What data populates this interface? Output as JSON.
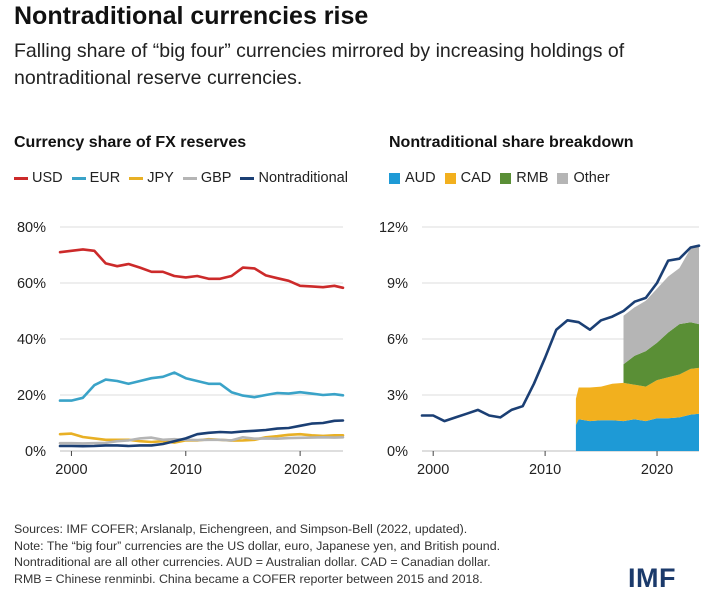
{
  "title": "Nontraditional currencies rise",
  "subtitle": "Falling share of “big four” currencies mirrored by increasing holdings of nontraditional reserve currencies.",
  "logo": "IMF",
  "notes": [
    "Sources: IMF COFER; Arslanalp, Eichengreen, and Simpson-Bell (2022, updated).",
    "Note: The “big four” currencies are the US dollar, euro, Japanese yen, and British pound.",
    "Nontraditional are all other currencies. AUD = Australian dollar. CAD = Canadian dollar.",
    "RMB = Chinese renminbi. China became a COFER reporter between 2015 and 2018."
  ],
  "chart_data": [
    {
      "type": "line",
      "title": "Currency share of FX reserves",
      "xlim": [
        1999,
        2023.75
      ],
      "ylim": [
        0,
        80
      ],
      "xticks": [
        "2000",
        "2010",
        "2020"
      ],
      "yticks": [
        "0%",
        "20%",
        "40%",
        "60%",
        "80%"
      ],
      "grid": "horizontal",
      "legend_position": "top",
      "series": [
        {
          "name": "USD",
          "color": "#cc2a2a",
          "x": [
            1999,
            2000,
            2001,
            2002,
            2003,
            2004,
            2005,
            2006,
            2007,
            2008,
            2009,
            2010,
            2011,
            2012,
            2013,
            2014,
            2015,
            2016,
            2017,
            2018,
            2019,
            2020,
            2021,
            2022,
            2023,
            2023.75
          ],
          "y": [
            71,
            71.5,
            72,
            71.5,
            67,
            66,
            66.8,
            65.5,
            64,
            64,
            62.5,
            62,
            62.5,
            61.5,
            61.5,
            62.5,
            65.5,
            65.2,
            62.7,
            61.7,
            60.8,
            59,
            58.8,
            58.5,
            59,
            58.3
          ]
        },
        {
          "name": "EUR",
          "color": "#3aa3c8",
          "x": [
            1999,
            2000,
            2001,
            2002,
            2003,
            2004,
            2005,
            2006,
            2007,
            2008,
            2009,
            2010,
            2011,
            2012,
            2013,
            2014,
            2015,
            2016,
            2017,
            2018,
            2019,
            2020,
            2021,
            2022,
            2023,
            2023.75
          ],
          "y": [
            18,
            18,
            19,
            23.5,
            25.5,
            25,
            24,
            25,
            26,
            26.5,
            28,
            26,
            25,
            24,
            24,
            21,
            19.8,
            19.2,
            20,
            20.7,
            20.5,
            21,
            20.5,
            20,
            20.3,
            19.9
          ]
        },
        {
          "name": "JPY",
          "color": "#e8b025",
          "x": [
            1999,
            2000,
            2001,
            2002,
            2003,
            2004,
            2005,
            2006,
            2007,
            2008,
            2009,
            2010,
            2011,
            2012,
            2013,
            2014,
            2015,
            2016,
            2017,
            2018,
            2019,
            2020,
            2021,
            2022,
            2023,
            2023.75
          ],
          "y": [
            6,
            6.2,
            5,
            4.5,
            4,
            4,
            4,
            3.5,
            3.2,
            3.5,
            3,
            3.8,
            3.8,
            4.2,
            4,
            3.7,
            3.8,
            4,
            4.9,
            5.3,
            5.8,
            6,
            5.6,
            5.4,
            5.6,
            5.6
          ]
        },
        {
          "name": "GBP",
          "color": "#b5b5b5",
          "x": [
            1999,
            2000,
            2001,
            2002,
            2003,
            2004,
            2005,
            2006,
            2007,
            2008,
            2009,
            2010,
            2011,
            2012,
            2013,
            2014,
            2015,
            2016,
            2017,
            2018,
            2019,
            2020,
            2021,
            2022,
            2023,
            2023.75
          ],
          "y": [
            2.8,
            2.8,
            2.7,
            2.8,
            2.9,
            3.5,
            3.8,
            4.5,
            4.8,
            4,
            4.2,
            4,
            3.9,
            4,
            4,
            3.8,
            4.9,
            4.4,
            4.5,
            4.4,
            4.6,
            4.7,
            4.8,
            4.9,
            4.8,
            4.9
          ]
        },
        {
          "name": "Nontraditional",
          "color": "#1b3f74",
          "x": [
            1999,
            2000,
            2001,
            2002,
            2003,
            2004,
            2005,
            2006,
            2007,
            2008,
            2009,
            2010,
            2011,
            2012,
            2013,
            2014,
            2015,
            2016,
            2017,
            2018,
            2019,
            2020,
            2021,
            2022,
            2023,
            2023.75
          ],
          "y": [
            1.8,
            1.8,
            1.7,
            1.8,
            2,
            2,
            1.8,
            2,
            2,
            2.5,
            3.5,
            4.5,
            6,
            6.5,
            6.8,
            6.6,
            7,
            7.2,
            7.5,
            8,
            8.2,
            9,
            9.8,
            10,
            10.8,
            10.9
          ]
        }
      ]
    },
    {
      "type": "area",
      "title": "Nontraditional share breakdown",
      "xlim": [
        1999,
        2023.75
      ],
      "ylim": [
        0,
        12
      ],
      "xticks": [
        "2000",
        "2010",
        "2020"
      ],
      "yticks": [
        "0%",
        "3%",
        "6%",
        "9%",
        "12%"
      ],
      "grid": "horizontal",
      "legend_position": "top",
      "stacked": true,
      "x": [
        2012.75,
        2013,
        2014,
        2015,
        2016,
        2017,
        2018,
        2019,
        2020,
        2021,
        2022,
        2023,
        2023.75
      ],
      "series": [
        {
          "name": "AUD",
          "color": "#1e9ad6",
          "values": [
            1.4,
            1.7,
            1.6,
            1.65,
            1.65,
            1.6,
            1.7,
            1.6,
            1.75,
            1.75,
            1.8,
            1.95,
            2.0
          ]
        },
        {
          "name": "CAD",
          "color": "#f2b01e",
          "values": [
            1.4,
            1.7,
            1.8,
            1.8,
            1.95,
            2.05,
            1.85,
            1.85,
            2.05,
            2.2,
            2.3,
            2.45,
            2.45
          ]
        },
        {
          "name": "RMB",
          "color": "#5a8f36",
          "values": [
            0,
            0,
            0,
            0,
            0,
            1.0,
            1.55,
            1.9,
            2.0,
            2.4,
            2.7,
            2.5,
            2.35
          ]
        },
        {
          "name": "Other",
          "color": "#b5b5b5",
          "values": [
            0,
            0,
            0,
            0,
            0,
            2.6,
            2.6,
            2.7,
            2.9,
            3.0,
            3.0,
            3.95,
            4.2
          ]
        }
      ],
      "line_series": {
        "name": "Nontraditional",
        "color": "#1b3f74",
        "x": [
          1999,
          2000,
          2001,
          2002,
          2003,
          2004,
          2005,
          2006,
          2007,
          2008,
          2009,
          2010,
          2011,
          2012,
          2013,
          2014,
          2015,
          2016,
          2017,
          2018,
          2019,
          2020,
          2021,
          2022,
          2023,
          2023.75
        ],
        "y": [
          1.9,
          1.9,
          1.6,
          1.8,
          2.0,
          2.2,
          1.9,
          1.8,
          2.2,
          2.4,
          3.6,
          5.0,
          6.5,
          7.0,
          6.9,
          6.5,
          7.0,
          7.2,
          7.5,
          8.0,
          8.2,
          9.0,
          10.2,
          10.3,
          10.9,
          11.0
        ]
      }
    }
  ]
}
